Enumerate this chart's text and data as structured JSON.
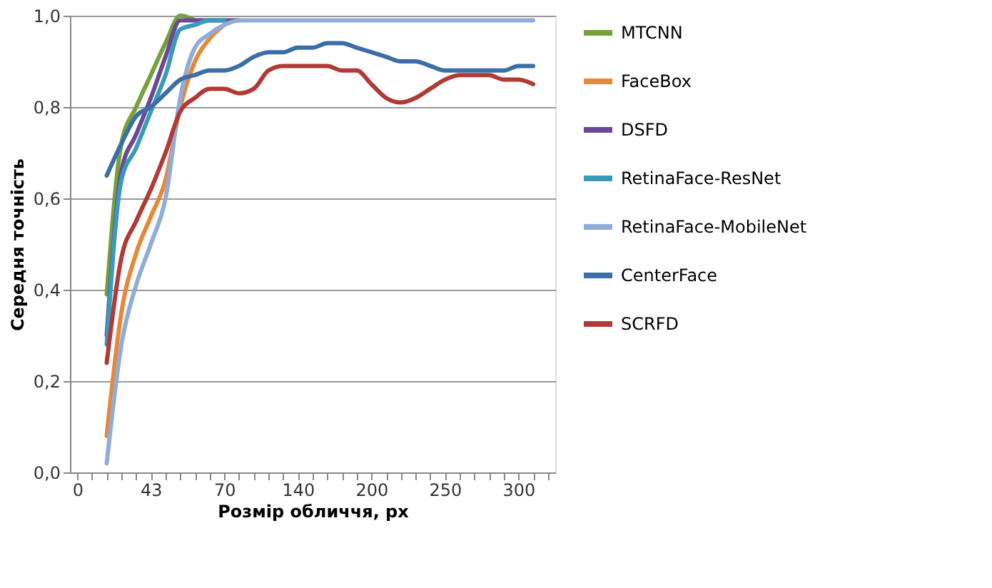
{
  "chart_data": {
    "type": "line",
    "xlabel": "Розмір обличчя,  px",
    "ylabel": "Середня точність",
    "categories": [
      "0",
      null,
      null,
      null,
      null,
      "43",
      null,
      null,
      null,
      null,
      "70",
      null,
      null,
      null,
      null,
      "140",
      null,
      null,
      null,
      null,
      "200",
      null,
      null,
      null,
      null,
      "250",
      null,
      null,
      null,
      null,
      "300",
      null,
      null
    ],
    "ylim": [
      0,
      1
    ],
    "yticks": [
      {
        "value": 0,
        "label": "0,0"
      },
      {
        "value": 0.2,
        "label": "0,2"
      },
      {
        "value": 0.4,
        "label": "0,4"
      },
      {
        "value": 0.6,
        "label": "0,6"
      },
      {
        "value": 0.8,
        "label": "0,8"
      },
      {
        "value": 1,
        "label": "1,0"
      }
    ],
    "grid": "y",
    "legend": "right",
    "marker": "none",
    "line_style": "solid",
    "series": [
      {
        "name": "MTCNN",
        "color": "#77a03c",
        "values": [
          null,
          null,
          0.39,
          0.72,
          0.8,
          0.87,
          0.94,
          1.0,
          0.99,
          null,
          null,
          null,
          null,
          null,
          null,
          null,
          null,
          null,
          null,
          null,
          null,
          null,
          null,
          null,
          null,
          null,
          null,
          null,
          null,
          null,
          null,
          null,
          null
        ]
      },
      {
        "name": "FaceBox",
        "color": "#e6883a",
        "values": [
          null,
          null,
          0.08,
          0.35,
          0.48,
          0.56,
          0.64,
          0.8,
          0.9,
          0.95,
          0.98,
          null,
          null,
          null,
          null,
          null,
          null,
          null,
          null,
          null,
          null,
          null,
          null,
          null,
          null,
          null,
          null,
          null,
          null,
          null,
          null,
          null,
          null
        ]
      },
      {
        "name": "DSFD",
        "color": "#6a4a96",
        "values": [
          null,
          null,
          0.3,
          0.66,
          0.74,
          0.82,
          0.91,
          0.99,
          0.99,
          0.99,
          0.99,
          0.99,
          null,
          null,
          null,
          null,
          null,
          null,
          null,
          null,
          null,
          null,
          null,
          null,
          null,
          null,
          null,
          null,
          null,
          null,
          null,
          null,
          null
        ]
      },
      {
        "name": "RetinaFace-ResNet",
        "color": "#3a9bb8",
        "values": [
          null,
          null,
          0.28,
          0.64,
          0.71,
          0.79,
          0.87,
          0.97,
          0.98,
          0.99,
          0.99,
          null,
          null,
          null,
          null,
          null,
          null,
          null,
          null,
          null,
          null,
          null,
          null,
          null,
          null,
          null,
          null,
          null,
          null,
          null,
          null,
          null,
          null
        ]
      },
      {
        "name": "RetinaFace-MobileNet",
        "color": "#90acd8",
        "values": [
          null,
          null,
          0.02,
          0.28,
          0.41,
          0.5,
          0.6,
          0.82,
          0.93,
          0.96,
          0.98,
          0.99,
          0.99,
          0.99,
          0.99,
          0.99,
          0.99,
          0.99,
          0.99,
          0.99,
          0.99,
          0.99,
          0.99,
          0.99,
          0.99,
          0.99,
          0.99,
          0.99,
          0.99,
          0.99,
          0.99,
          0.99,
          null
        ]
      },
      {
        "name": "CenterFace",
        "color": "#3b6ea5",
        "values": [
          null,
          null,
          0.65,
          0.72,
          0.78,
          0.8,
          0.83,
          0.86,
          0.87,
          0.88,
          0.88,
          0.89,
          0.91,
          0.92,
          0.92,
          0.93,
          0.93,
          0.94,
          0.94,
          0.93,
          0.92,
          0.91,
          0.9,
          0.9,
          0.89,
          0.88,
          0.88,
          0.88,
          0.88,
          0.88,
          0.89,
          0.89,
          null
        ]
      },
      {
        "name": "SCRFD",
        "color": "#b23a36",
        "values": [
          null,
          null,
          0.24,
          0.47,
          0.55,
          0.62,
          0.7,
          0.79,
          0.82,
          0.84,
          0.84,
          0.83,
          0.84,
          0.88,
          0.89,
          0.89,
          0.89,
          0.89,
          0.88,
          0.88,
          0.85,
          0.82,
          0.81,
          0.82,
          0.84,
          0.86,
          0.87,
          0.87,
          0.87,
          0.86,
          0.86,
          0.85,
          null
        ]
      }
    ]
  }
}
